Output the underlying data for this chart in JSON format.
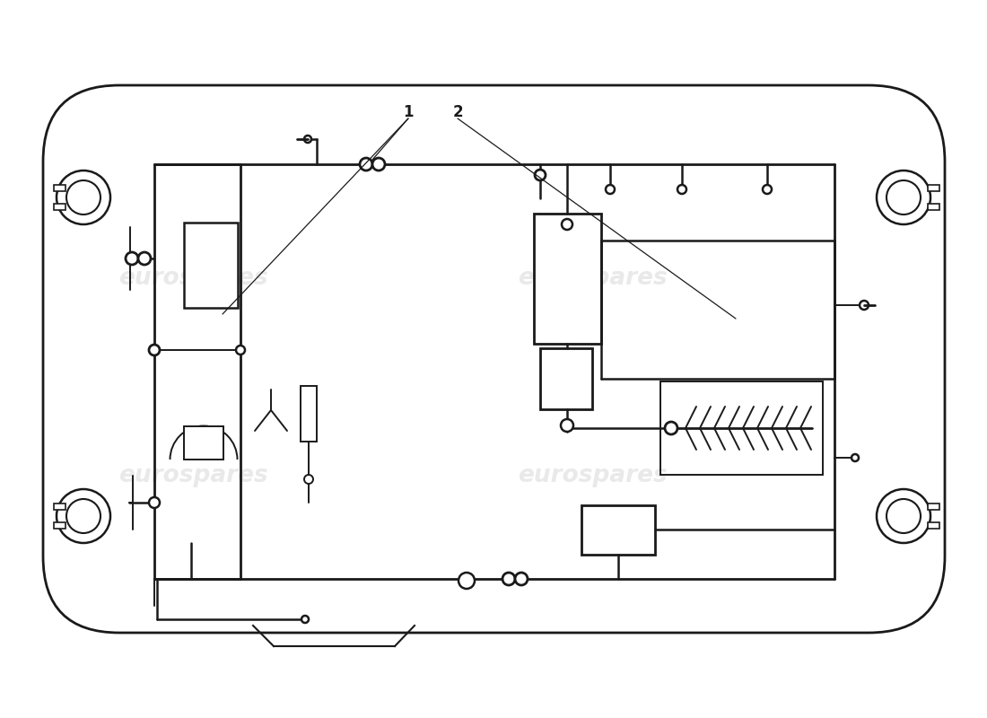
{
  "bg_color": "#ffffff",
  "lc": "#1a1a1a",
  "wm_color": "#d8d8d8",
  "wm_text": "eurospares",
  "label1": "1",
  "label2": "2",
  "figsize": [
    11.0,
    8.0
  ],
  "dpi": 100
}
